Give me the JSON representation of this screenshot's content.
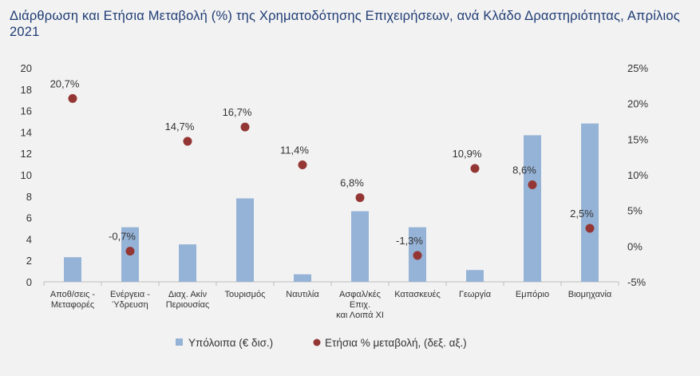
{
  "title": "Διάρθρωση και Ετήσια Μεταβολή (%) της Χρηματοδότησης Επιχειρήσεων, ανά Κλάδο Δραστηριότητας, Απρίλιος 2021",
  "colors": {
    "bar": "#95b3d7",
    "dot": "#943634",
    "title": "#1f3c74",
    "background": "#f2f2f2"
  },
  "chart_data": {
    "type": "bar",
    "categories": [
      [
        "Αποθ/σεις -",
        "Μεταφορές"
      ],
      [
        "Ενέργεια -",
        "Ύδρευση"
      ],
      [
        "Διαχ. Ακίν",
        "Περιουσίας"
      ],
      [
        "Τουρισμός"
      ],
      [
        "Ναυτιλία"
      ],
      [
        "Ασφαλ/κές",
        "Επιχ.",
        "και Λοιπά ΧΙ"
      ],
      [
        "Κατασκευές"
      ],
      [
        "Γεωργία"
      ],
      [
        "Εμπόριο"
      ],
      [
        "Βιομηχανία"
      ]
    ],
    "series": [
      {
        "name": "Υπόλοιπα (€ δισ.)",
        "type": "bar",
        "axis": "left",
        "values": [
          2.3,
          5.1,
          3.5,
          7.8,
          0.7,
          6.6,
          5.1,
          1.1,
          13.7,
          14.8
        ]
      },
      {
        "name": "Ετήσια % μεταβολή, (δεξ. αξ.)",
        "type": "scatter",
        "axis": "right",
        "values": [
          20.7,
          -0.7,
          14.7,
          16.7,
          11.4,
          6.8,
          -1.3,
          10.9,
          8.6,
          2.5
        ],
        "labels": [
          "20,7%",
          "-0,7%",
          "14,7%",
          "16,7%",
          "11,4%",
          "6,8%",
          "-1,3%",
          "10,9%",
          "8,6%",
          "2,5%"
        ]
      }
    ],
    "y_left": {
      "min": 0,
      "max": 20,
      "ticks": [
        "0",
        "2",
        "4",
        "6",
        "8",
        "10",
        "12",
        "14",
        "16",
        "18",
        "20"
      ]
    },
    "y_right": {
      "min": -5,
      "max": 25,
      "ticks": [
        "-5%",
        "0%",
        "5%",
        "10%",
        "15%",
        "20%",
        "25%"
      ]
    },
    "grid": false,
    "legend_position": "bottom"
  }
}
